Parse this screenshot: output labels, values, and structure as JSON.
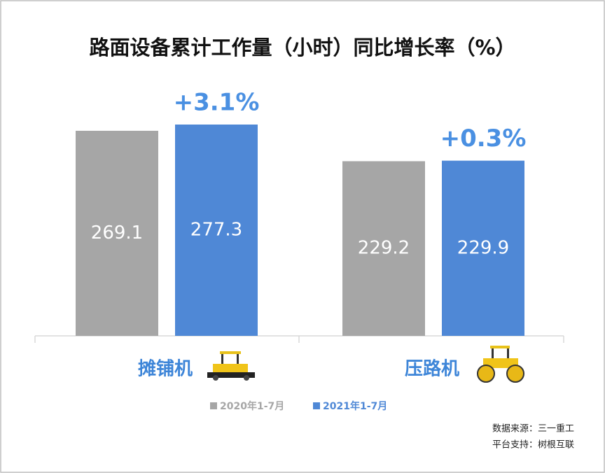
{
  "chart_data": {
    "type": "bar",
    "title": "路面设备累计工作量（小时）同比增长率（%）",
    "categories": [
      "摊铺机",
      "压路机"
    ],
    "series": [
      {
        "name": "2020年1-7月",
        "color": "#a6a6a6",
        "values": [
          269.1,
          229.2
        ]
      },
      {
        "name": "2021年1-7月",
        "color": "#4f88d6",
        "values": [
          277.3,
          229.9
        ]
      }
    ],
    "annotations": [
      "+3.1%",
      "+0.3%"
    ],
    "source": [
      "数据来源：三一重工",
      "平台支持：树根互联"
    ]
  }
}
